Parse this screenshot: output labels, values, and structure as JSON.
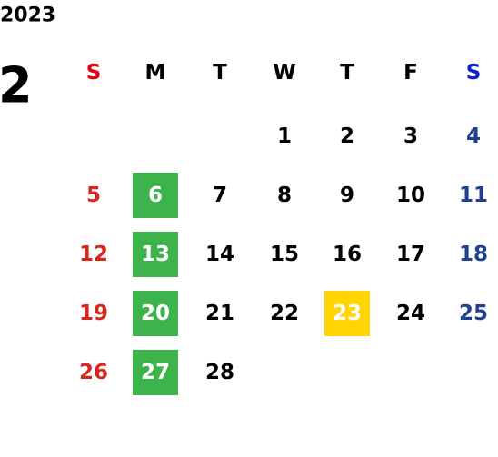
{
  "year": "2023",
  "month": "2",
  "weekdays": [
    "S",
    "M",
    "T",
    "W",
    "T",
    "F",
    "S"
  ],
  "weekday_colors": [
    "#e60012",
    "#000000",
    "#000000",
    "#000000",
    "#000000",
    "#000000",
    "#0a1fd6"
  ],
  "day_colors": [
    "#d9261c",
    "#000000",
    "#000000",
    "#000000",
    "#000000",
    "#000000",
    "#1f3f8f"
  ],
  "highlight_text_color": "#ffffff",
  "weeks": [
    [
      null,
      null,
      null,
      1,
      2,
      3,
      4
    ],
    [
      5,
      {
        "day": 6,
        "background": "#3cb44b"
      },
      7,
      8,
      9,
      10,
      11
    ],
    [
      12,
      {
        "day": 13,
        "background": "#3cb44b"
      },
      14,
      15,
      16,
      17,
      18
    ],
    [
      19,
      {
        "day": 20,
        "background": "#3cb44b"
      },
      21,
      22,
      {
        "day": 23,
        "background": "#ffd400"
      },
      24,
      25
    ],
    [
      26,
      {
        "day": 27,
        "background": "#3cb44b"
      },
      28,
      null,
      null,
      null,
      null
    ]
  ]
}
